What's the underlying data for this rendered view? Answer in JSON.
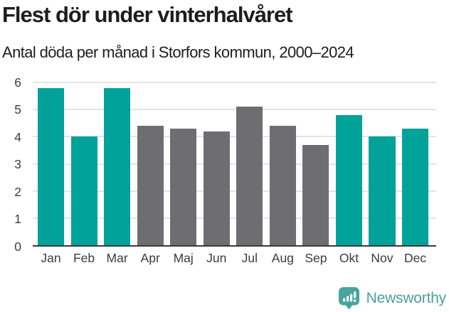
{
  "header": {
    "title": "Flest dör under vinterhalvåret",
    "subtitle": "Antal döda per månad i Storfors kommun, 2000–2024"
  },
  "chart_data": {
    "type": "bar",
    "title": "Flest dör under vinterhalvåret",
    "subtitle": "Antal döda per månad i Storfors kommun, 2000–2024",
    "categories": [
      "Jan",
      "Feb",
      "Mar",
      "Apr",
      "Maj",
      "Jun",
      "Jul",
      "Aug",
      "Sep",
      "Okt",
      "Nov",
      "Dec"
    ],
    "values": [
      5.8,
      4.0,
      5.8,
      4.4,
      4.3,
      4.2,
      5.1,
      4.4,
      3.7,
      4.8,
      4.0,
      4.3
    ],
    "highlighted": [
      true,
      true,
      true,
      false,
      false,
      false,
      false,
      false,
      false,
      true,
      true,
      true
    ],
    "xlabel": "",
    "ylabel": "",
    "ylim": [
      0,
      6
    ],
    "yticks": [
      0,
      1,
      2,
      3,
      4,
      5,
      6
    ],
    "grid": true,
    "legend": false,
    "colors": {
      "highlight": "#00a29a",
      "muted": "#6d6d72",
      "gridline": "#e4e4e4",
      "axis_line": "#3a3a3a",
      "tick_label": "#3c3c3c"
    }
  },
  "footer": {
    "brand": "Newsworthy",
    "logo_icon": "bar-chart-speech-bubble-icon",
    "brand_color": "#4ba09b",
    "logo_fill": "#48a49e"
  }
}
